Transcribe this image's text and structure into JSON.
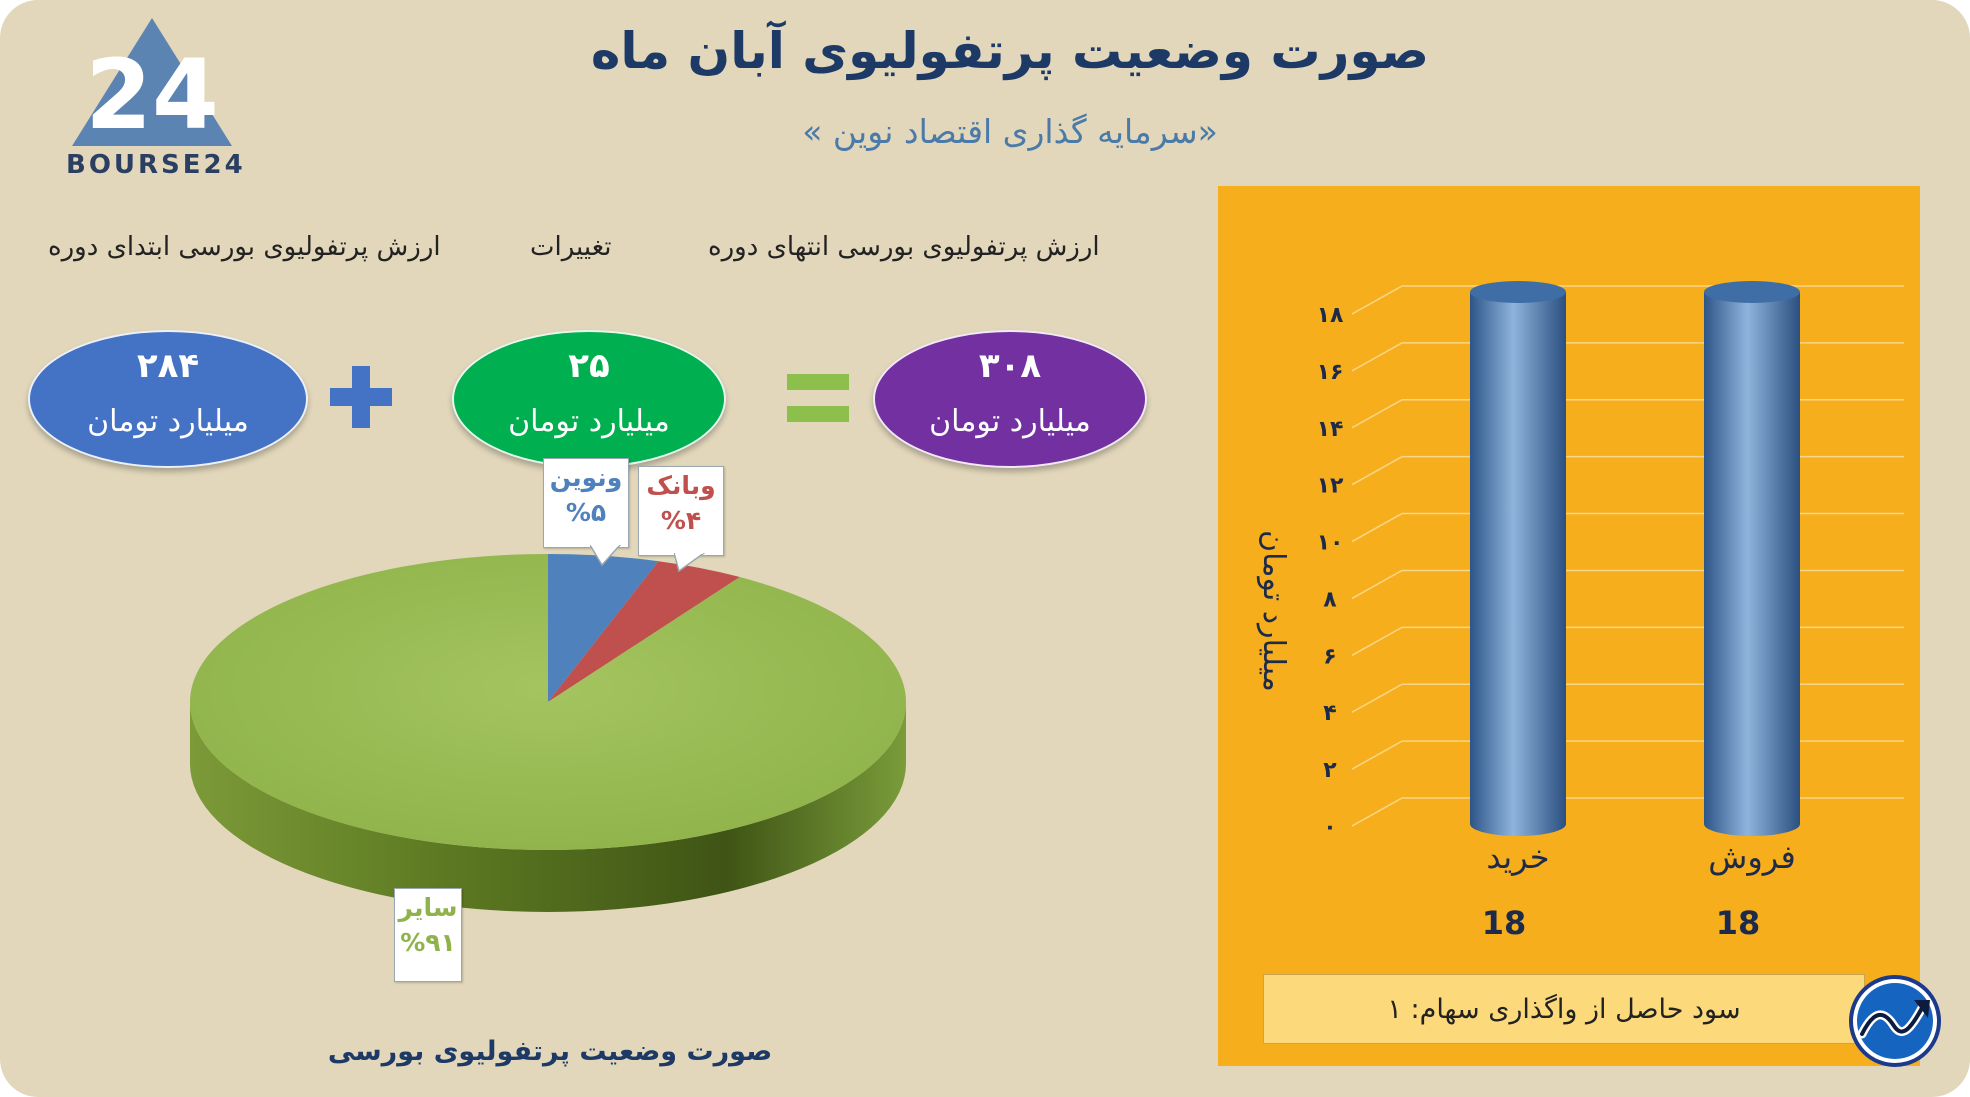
{
  "header": {
    "title": "صورت وضعیت پرتفولیوی آبان ماه",
    "subtitle": "«سرمایه گذاری اقتصاد نوین »",
    "logo_text": "BOURSE24",
    "logo_mark": "24"
  },
  "summary": {
    "end_label": "ارزش پرتفولیوی بورسی انتهای دوره",
    "change_label": "تغییرات",
    "start_label": "ارزش پرتفولیوی بورسی ابتدای دوره",
    "end_value": "۳۰۸",
    "change_value": "۲۵",
    "start_value": "۲۸۴",
    "unit": "میلیارد تومان",
    "colors": {
      "end": "#7230a0",
      "change": "#00af4f",
      "start": "#4472c4",
      "plus": "#4472c4",
      "equals": "#8cbf4b"
    }
  },
  "pie": {
    "caption": "صورت وضعیت پرتفولیوی بورسی",
    "callouts": [
      {
        "name": "ونوین",
        "pct": "%۵",
        "color": "#4f81bd"
      },
      {
        "name": "وبانک",
        "pct": "%۴",
        "color": "#c0504d"
      },
      {
        "name": "سایر",
        "pct": "%۹۱",
        "color": "#8fb34a"
      }
    ]
  },
  "bar_panel": {
    "ylabel": "میلیارد تومان",
    "yticks": [
      "۰",
      "۲",
      "۴",
      "۶",
      "۸",
      "۱۰",
      "۱۲",
      "۱۴",
      "۱۶",
      "۱۸"
    ],
    "cat_labels": [
      "خرید",
      "فروش"
    ],
    "value_labels": [
      "18",
      "18"
    ],
    "profit_text": "سود حاصل از واگذاری سهام: ۱",
    "badge_icon": "trend-arrow-icon"
  },
  "chart_data": [
    {
      "type": "pie",
      "title": "صورت وضعیت پرتفولیوی بورسی",
      "labels": [
        "ونوین",
        "وبانک",
        "سایر"
      ],
      "values": [
        5,
        4,
        91
      ],
      "colors": [
        "#4f81bd",
        "#c0504d",
        "#9bbb59"
      ]
    },
    {
      "type": "bar",
      "categories": [
        "خرید",
        "فروش"
      ],
      "values": [
        18,
        18
      ],
      "ylabel": "میلیارد تومان",
      "ylim": [
        0,
        18
      ],
      "grid": true,
      "bar_color": "#4f7fb5"
    }
  ]
}
